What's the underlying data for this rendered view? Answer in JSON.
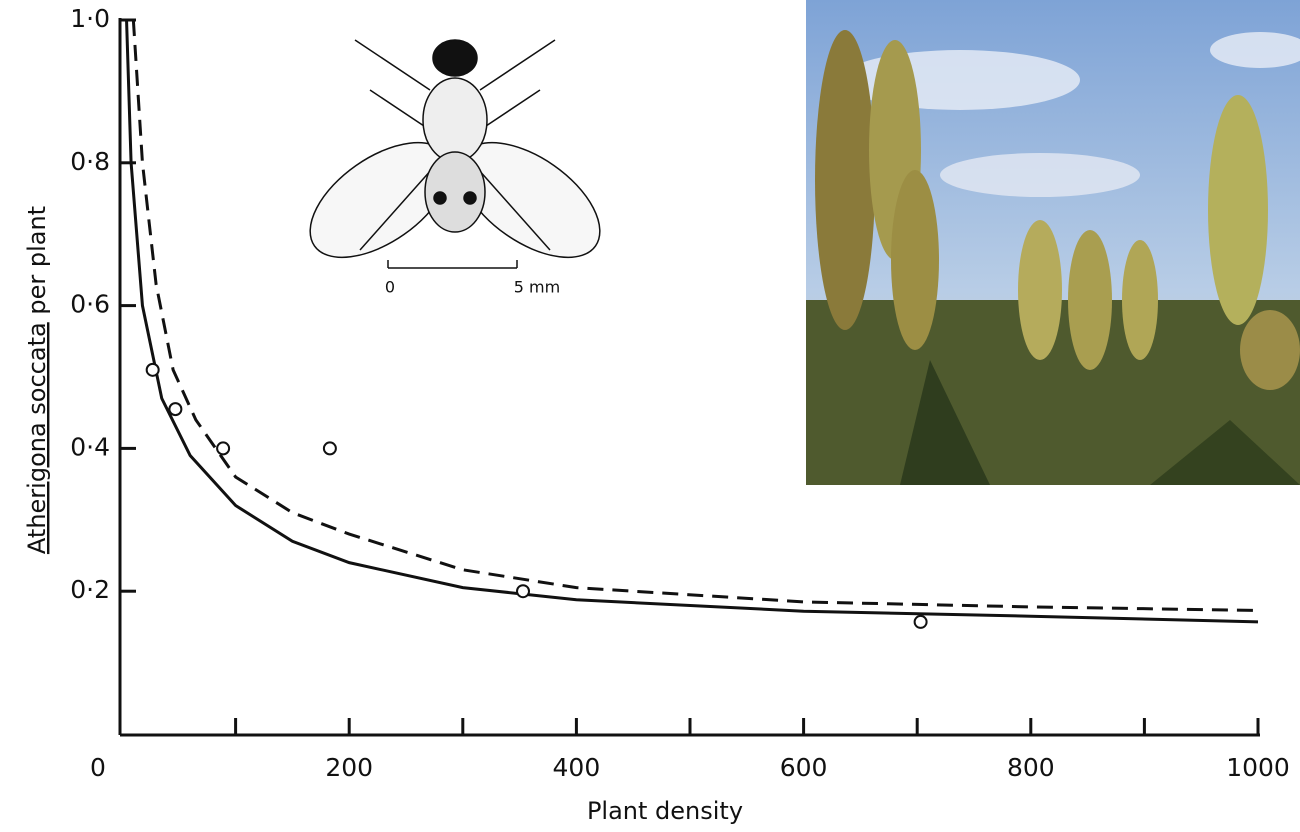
{
  "chart_data": {
    "type": "scatter",
    "xlabel": "Plant density",
    "ylabel": [
      "Atherigona soccata",
      "per plant"
    ],
    "xlim": [
      0,
      1000
    ],
    "ylim": [
      0,
      1.0
    ],
    "xticks": [
      0,
      200,
      400,
      600,
      800,
      1000
    ],
    "xminorticks": [
      100,
      300,
      500,
      700,
      900
    ],
    "yticks": [
      {
        "value": 0.2,
        "label": "0·2"
      },
      {
        "value": 0.4,
        "label": "0·4"
      },
      {
        "value": 0.6,
        "label": "0·6"
      },
      {
        "value": 0.8,
        "label": "0·8"
      },
      {
        "value": 1.0,
        "label": "1·0"
      }
    ],
    "color": "#111111",
    "points": {
      "x": [
        27,
        47,
        89,
        183,
        353,
        703
      ],
      "values": [
        0.51,
        0.455,
        0.4,
        0.4,
        0.2,
        0.157
      ]
    },
    "curves": [
      {
        "style": "solid",
        "x": [
          4,
          8,
          18,
          35,
          60,
          100,
          150,
          200,
          300,
          400,
          600,
          800,
          1000
        ],
        "values": [
          1.0,
          0.8,
          0.6,
          0.47,
          0.39,
          0.32,
          0.27,
          0.24,
          0.205,
          0.188,
          0.172,
          0.165,
          0.157
        ]
      },
      {
        "style": "dashed",
        "x": [
          10,
          18,
          30,
          45,
          65,
          100,
          150,
          200,
          300,
          400,
          600,
          800,
          1000
        ],
        "values": [
          1.0,
          0.8,
          0.63,
          0.51,
          0.44,
          0.36,
          0.31,
          0.28,
          0.23,
          0.205,
          0.185,
          0.178,
          0.173
        ]
      }
    ],
    "inset_labels": [
      "0",
      "5 mm"
    ]
  }
}
